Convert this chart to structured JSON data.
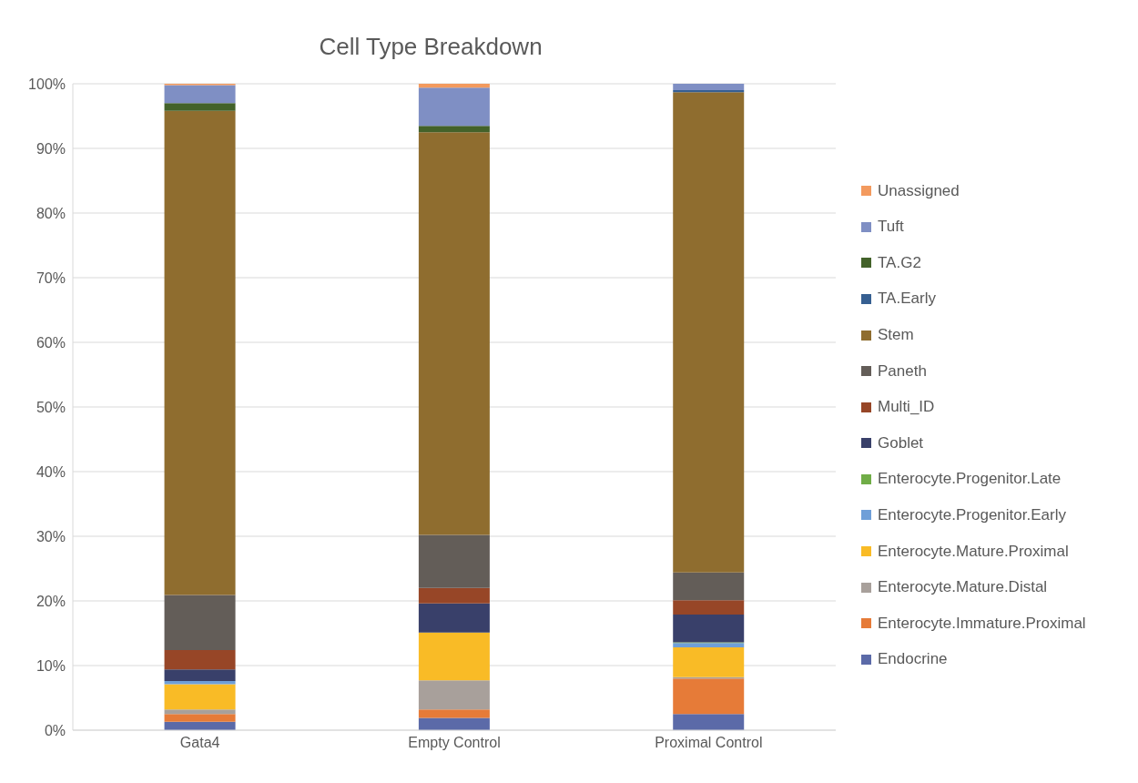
{
  "chart_data": {
    "type": "bar",
    "title": "Cell Type Breakdown",
    "stacked": true,
    "categories": [
      "Gata4",
      "Empty Control",
      "Proximal Control"
    ],
    "series": [
      {
        "name": "Endocrine",
        "color": "#5b6aa8",
        "values": [
          1.3,
          1.9,
          2.5
        ]
      },
      {
        "name": "Enterocyte.Immature.Proximal",
        "color": "#e67b38",
        "values": [
          1.2,
          1.3,
          5.5
        ]
      },
      {
        "name": "Enterocyte.Mature.Distal",
        "color": "#a8a09b",
        "values": [
          0.7,
          4.5,
          0.2
        ]
      },
      {
        "name": "Enterocyte.Mature.Proximal",
        "color": "#f9bb26",
        "values": [
          3.9,
          7.4,
          4.6
        ]
      },
      {
        "name": "Enterocyte.Progenitor.Early",
        "color": "#6f9fd8",
        "values": [
          0.5,
          0,
          0.7
        ]
      },
      {
        "name": "Enterocyte.Progenitor.Late",
        "color": "#70ad47",
        "values": [
          0,
          0,
          0.1
        ]
      },
      {
        "name": "Goblet",
        "color": "#39406a",
        "values": [
          1.8,
          4.5,
          4.3
        ]
      },
      {
        "name": "Multi_ID",
        "color": "#974627",
        "values": [
          3.0,
          2.4,
          2.2
        ]
      },
      {
        "name": "Paneth",
        "color": "#635d58",
        "values": [
          8.5,
          8.2,
          4.3
        ]
      },
      {
        "name": "Stem",
        "color": "#8f6d2f",
        "values": [
          74.9,
          62.3,
          74.3
        ]
      },
      {
        "name": "TA.Early",
        "color": "#365f91",
        "values": [
          0,
          0,
          0.3
        ]
      },
      {
        "name": "TA.G2",
        "color": "#43622a",
        "values": [
          1.2,
          1.0,
          0
        ]
      },
      {
        "name": "Tuft",
        "color": "#7f8fc4",
        "values": [
          2.8,
          5.9,
          1.0
        ]
      },
      {
        "name": "Unassigned",
        "color": "#f39a5e",
        "values": [
          0.2,
          0.6,
          0
        ]
      }
    ],
    "ylim": [
      0,
      100
    ],
    "yticks": [
      {
        "value": 0,
        "label": "0%"
      },
      {
        "value": 10,
        "label": "10%"
      },
      {
        "value": 20,
        "label": "20%"
      },
      {
        "value": 30,
        "label": "30%"
      },
      {
        "value": 40,
        "label": "40%"
      },
      {
        "value": 50,
        "label": "50%"
      },
      {
        "value": 60,
        "label": "60%"
      },
      {
        "value": 70,
        "label": "70%"
      },
      {
        "value": 80,
        "label": "80%"
      },
      {
        "value": 90,
        "label": "90%"
      },
      {
        "value": 100,
        "label": "100%"
      }
    ],
    "grid": "y",
    "legend": "right"
  }
}
